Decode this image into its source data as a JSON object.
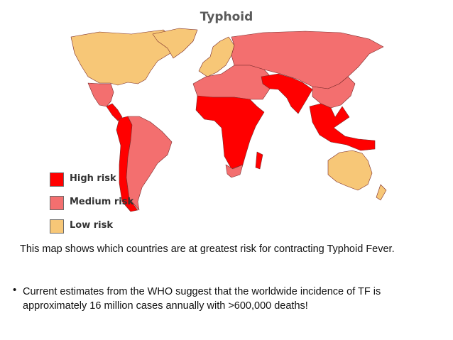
{
  "title": "Typhoid",
  "colors": {
    "high": "#ff0000",
    "medium": "#f36f6f",
    "low": "#f7c777",
    "border": "#7a2b2b"
  },
  "legend": [
    {
      "key": "high",
      "label": "High risk",
      "color": "#ff0000"
    },
    {
      "key": "medium",
      "label": "Medium risk",
      "color": "#f36f6f"
    },
    {
      "key": "low",
      "label": "Low risk",
      "color": "#f7c777"
    }
  ],
  "regions": [
    {
      "name": "north-america",
      "risk": "low"
    },
    {
      "name": "greenland",
      "risk": "low"
    },
    {
      "name": "mexico-central-america",
      "risk": "medium"
    },
    {
      "name": "central-america-isthmus",
      "risk": "high"
    },
    {
      "name": "south-america-west",
      "risk": "high"
    },
    {
      "name": "south-america-east",
      "risk": "medium"
    },
    {
      "name": "western-europe",
      "risk": "low"
    },
    {
      "name": "eastern-europe-russia",
      "risk": "medium"
    },
    {
      "name": "north-africa-middle-east",
      "risk": "medium"
    },
    {
      "name": "sub-saharan-africa",
      "risk": "high"
    },
    {
      "name": "south-africa",
      "risk": "medium"
    },
    {
      "name": "madagascar",
      "risk": "high"
    },
    {
      "name": "south-asia",
      "risk": "high"
    },
    {
      "name": "east-asia",
      "risk": "medium"
    },
    {
      "name": "southeast-asia-islands",
      "risk": "high"
    },
    {
      "name": "australia",
      "risk": "low"
    },
    {
      "name": "new-zealand",
      "risk": "low"
    }
  ],
  "caption": "This map shows which countries are at greatest risk for contracting Typhoid Fever.",
  "bullet_glyph": "•",
  "note": "Current estimates from the WHO suggest that the worldwide incidence of TF is approximately 16 million cases annually with >600,000 deaths!"
}
